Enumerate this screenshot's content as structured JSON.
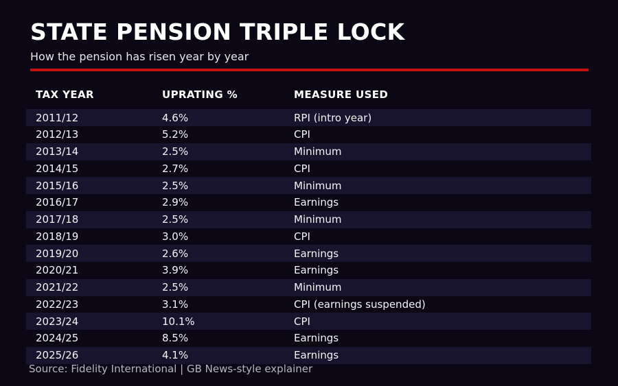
{
  "theme": {
    "background": "#0b0714",
    "stripe": "#18142e",
    "accent_red": "#c50f0f",
    "title_color": "#ffffff",
    "subtitle_color": "#e6e6e6",
    "cell_text_color": "#f5f5f7",
    "source_color": "#b8b6c2"
  },
  "header": {
    "title": "STATE PENSION TRIPLE LOCK",
    "subtitle": "How the pension has risen year by year"
  },
  "table": {
    "columns": [
      "TAX YEAR",
      "UPRATING %",
      "MEASURE USED"
    ],
    "rows": [
      {
        "tax_year": "2011/12",
        "uprating": "4.6%",
        "measure": "RPI (intro year)"
      },
      {
        "tax_year": "2012/13",
        "uprating": "5.2%",
        "measure": "CPI"
      },
      {
        "tax_year": "2013/14",
        "uprating": "2.5%",
        "measure": "Minimum"
      },
      {
        "tax_year": "2014/15",
        "uprating": "2.7%",
        "measure": "CPI"
      },
      {
        "tax_year": "2015/16",
        "uprating": "2.5%",
        "measure": "Minimum"
      },
      {
        "tax_year": "2016/17",
        "uprating": "2.9%",
        "measure": "Earnings"
      },
      {
        "tax_year": "2017/18",
        "uprating": "2.5%",
        "measure": "Minimum"
      },
      {
        "tax_year": "2018/19",
        "uprating": "3.0%",
        "measure": "CPI"
      },
      {
        "tax_year": "2019/20",
        "uprating": "2.6%",
        "measure": "Earnings"
      },
      {
        "tax_year": "2020/21",
        "uprating": "3.9%",
        "measure": "Earnings"
      },
      {
        "tax_year": "2021/22",
        "uprating": "2.5%",
        "measure": "Minimum"
      },
      {
        "tax_year": "2022/23",
        "uprating": "3.1%",
        "measure": "CPI (earnings suspended)"
      },
      {
        "tax_year": "2023/24",
        "uprating": "10.1%",
        "measure": "CPI"
      },
      {
        "tax_year": "2024/25",
        "uprating": "8.5%",
        "measure": "Earnings"
      },
      {
        "tax_year": "2025/26",
        "uprating": "4.1%",
        "measure": "Earnings"
      }
    ]
  },
  "footer": {
    "source": "Source: Fidelity International | GB News-style explainer"
  },
  "chart_data": {
    "type": "table",
    "title": "STATE PENSION TRIPLE LOCK",
    "subtitle": "How the pension has risen year by year",
    "columns": [
      "TAX YEAR",
      "UPRATING %",
      "MEASURE USED"
    ],
    "rows": [
      [
        "2011/12",
        "4.6%",
        "RPI (intro year)"
      ],
      [
        "2012/13",
        "5.2%",
        "CPI"
      ],
      [
        "2013/14",
        "2.5%",
        "Minimum"
      ],
      [
        "2014/15",
        "2.7%",
        "CPI"
      ],
      [
        "2015/16",
        "2.5%",
        "Minimum"
      ],
      [
        "2016/17",
        "2.9%",
        "Earnings"
      ],
      [
        "2017/18",
        "2.5%",
        "Minimum"
      ],
      [
        "2018/19",
        "3.0%",
        "CPI"
      ],
      [
        "2019/20",
        "2.6%",
        "Earnings"
      ],
      [
        "2020/21",
        "3.9%",
        "Earnings"
      ],
      [
        "2021/22",
        "2.5%",
        "Minimum"
      ],
      [
        "2022/23",
        "3.1%",
        "CPI (earnings suspended)"
      ],
      [
        "2023/24",
        "10.1%",
        "CPI"
      ],
      [
        "2024/25",
        "8.5%",
        "Earnings"
      ],
      [
        "2025/26",
        "4.1%",
        "Earnings"
      ]
    ],
    "uprating_values_percent": [
      4.6,
      5.2,
      2.5,
      2.7,
      2.5,
      2.9,
      2.5,
      3.0,
      2.6,
      3.9,
      2.5,
      3.1,
      10.1,
      8.5,
      4.1
    ],
    "source": "Source: Fidelity International | GB News-style explainer"
  }
}
